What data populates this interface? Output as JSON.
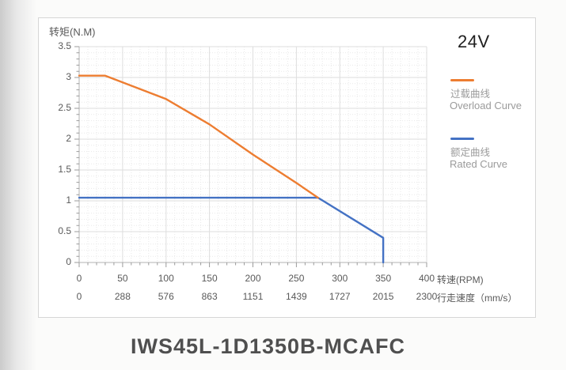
{
  "model_title": "IWS45L-1D1350B-MCAFC",
  "chart_data": {
    "type": "line",
    "title": "24V",
    "grid": true,
    "legend_position": "right",
    "y_axis": {
      "title": "转矩(N.M)",
      "range": [
        0,
        3.5
      ],
      "ticks": [
        0,
        0.5,
        1,
        1.5,
        2,
        2.5,
        3,
        3.5
      ]
    },
    "x_axis": {
      "title_rpm": "转速(RPM)",
      "title_speed": "行走速度（mm/s）",
      "range": [
        0,
        400
      ],
      "ticks_rpm": [
        0,
        50,
        100,
        150,
        200,
        250,
        300,
        350,
        400
      ],
      "ticks_speed": [
        0,
        288,
        576,
        863,
        1151,
        1439,
        1727,
        2015,
        2300
      ]
    },
    "series": [
      {
        "name_zh": "过载曲线",
        "name_en": "Overload Curve",
        "color": "#ED7D31",
        "points": [
          [
            0,
            3.03
          ],
          [
            30,
            3.03
          ],
          [
            100,
            2.65
          ],
          [
            150,
            2.24
          ],
          [
            200,
            1.75
          ],
          [
            250,
            1.29
          ],
          [
            275,
            1.05
          ]
        ]
      },
      {
        "name_zh": "额定曲线",
        "name_en": "Rated Curve",
        "color": "#4472C4",
        "points": [
          [
            0,
            1.05
          ],
          [
            275,
            1.05
          ],
          [
            350,
            0.4
          ],
          [
            350,
            0
          ]
        ]
      }
    ]
  }
}
